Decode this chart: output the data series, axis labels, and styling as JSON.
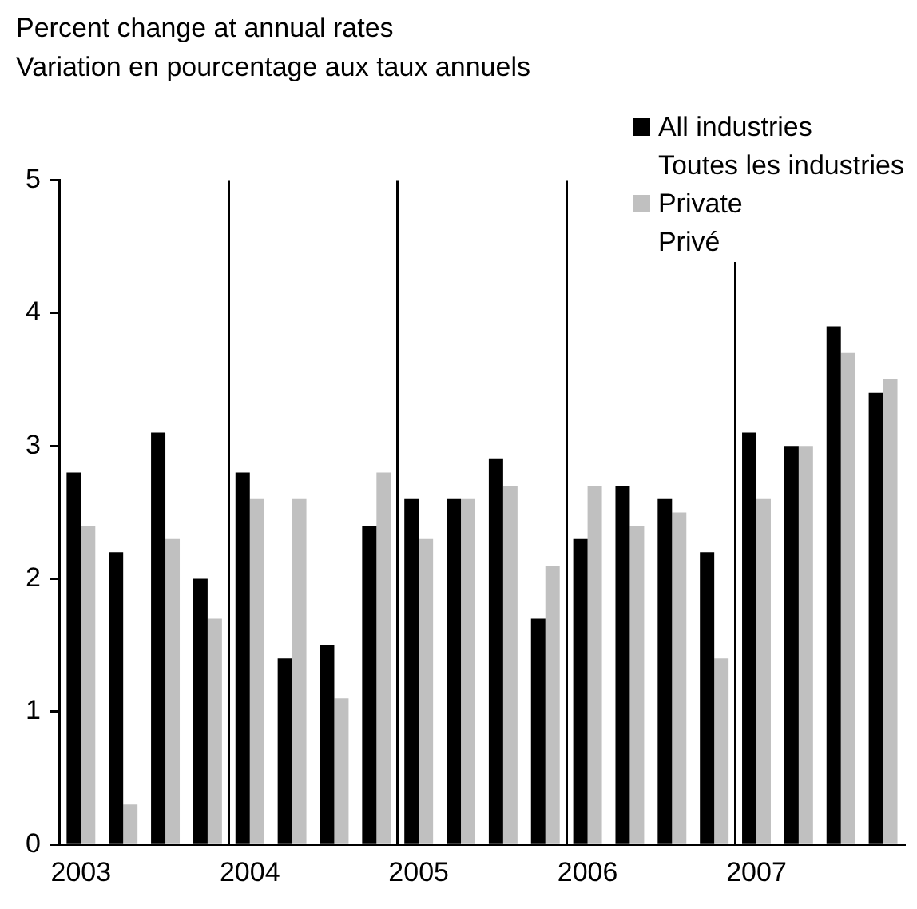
{
  "chart_data": {
    "type": "bar",
    "title": "Percent change at annual rates",
    "subtitle": "Variation en pourcentage aux taux annuels",
    "categories": [
      "2003",
      null,
      null,
      null,
      "2004",
      null,
      null,
      null,
      "2005",
      null,
      null,
      null,
      "2006",
      null,
      null,
      null,
      "2007",
      null,
      null,
      null
    ],
    "series": [
      {
        "name": "All industries\nToutes les industries",
        "color": "#000000",
        "values": [
          2.8,
          2.2,
          3.1,
          2.0,
          2.8,
          1.4,
          1.5,
          2.4,
          2.6,
          2.6,
          2.9,
          1.7,
          2.3,
          2.7,
          2.6,
          2.2,
          3.1,
          3.0,
          3.9,
          3.4
        ]
      },
      {
        "name": "Private\nPrivé",
        "color": "#c0c0c0",
        "values": [
          2.4,
          0.3,
          2.3,
          1.7,
          2.6,
          2.6,
          1.1,
          2.8,
          2.3,
          2.6,
          2.7,
          2.1,
          2.7,
          2.4,
          2.5,
          1.4,
          2.6,
          3.0,
          3.7,
          3.5
        ]
      }
    ],
    "ylim": [
      0,
      5
    ],
    "yticks": [
      0,
      1,
      2,
      3,
      4,
      5
    ],
    "grid": "x",
    "legend": "top right"
  }
}
